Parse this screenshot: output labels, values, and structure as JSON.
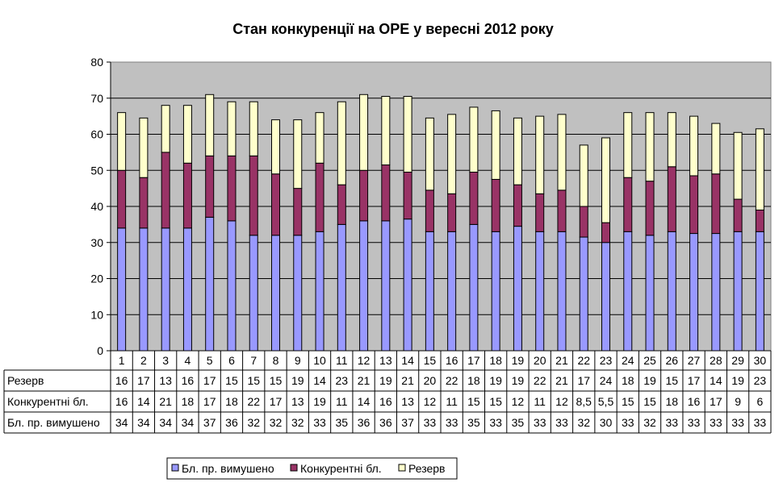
{
  "chart_data": {
    "type": "bar",
    "stacked": true,
    "title": "Стан конкуренції на ОРЕ  у вересні 2012 року",
    "categories": [
      "1",
      "2",
      "3",
      "4",
      "5",
      "6",
      "7",
      "8",
      "9",
      "10",
      "11",
      "12",
      "13",
      "14",
      "15",
      "16",
      "17",
      "18",
      "19",
      "20",
      "21",
      "22",
      "23",
      "24",
      "25",
      "26",
      "27",
      "28",
      "29",
      "30"
    ],
    "ylim": [
      0,
      80
    ],
    "yticks": [
      "0",
      "10",
      "20",
      "30",
      "40",
      "50",
      "60",
      "70",
      "80"
    ],
    "ytick_values": [
      0,
      10,
      20,
      30,
      40,
      50,
      60,
      70,
      80
    ],
    "plot_background": "#c0c0c0",
    "series": [
      {
        "name": "Бл. пр. вимушено",
        "color": "#9999ff",
        "values": [
          34,
          34,
          34,
          34,
          37,
          36,
          32,
          32,
          32,
          33,
          35,
          36,
          36,
          36.5,
          33,
          33,
          35,
          33,
          34.5,
          33,
          33,
          31.5,
          30,
          33,
          32,
          33,
          32.5,
          32.5,
          33,
          33
        ],
        "labels": [
          "34",
          "34",
          "34",
          "34",
          "37",
          "36",
          "32",
          "32",
          "32",
          "33",
          "35",
          "36",
          "36",
          "37",
          "33",
          "33",
          "35",
          "33",
          "35",
          "33",
          "33",
          "32",
          "30",
          "33",
          "32",
          "33",
          "33",
          "33",
          "33",
          "33"
        ]
      },
      {
        "name": "Конкурентні бл.",
        "color": "#993366",
        "values": [
          16,
          14,
          21,
          18,
          17,
          18,
          22,
          17,
          13,
          19,
          11,
          14,
          15.5,
          13,
          11.5,
          10.5,
          14.5,
          14.5,
          11.5,
          10.5,
          11.5,
          8.5,
          5.5,
          15,
          15,
          18,
          16,
          16.5,
          9,
          6
        ],
        "labels": [
          "16",
          "14",
          "21",
          "18",
          "17",
          "18",
          "22",
          "17",
          "13",
          "19",
          "11",
          "14",
          "16",
          "13",
          "12",
          "11",
          "15",
          "15",
          "12",
          "11",
          "12",
          "8,5",
          "5,5",
          "15",
          "15",
          "18",
          "16",
          "17",
          "9",
          "6"
        ]
      },
      {
        "name": "Резерв",
        "color": "#ffffcc",
        "values": [
          16,
          16.5,
          13,
          16,
          17,
          15,
          15,
          15,
          19,
          14,
          23,
          21,
          19,
          21,
          20,
          22,
          18,
          19,
          18.5,
          21.5,
          21,
          17,
          23.5,
          18,
          19,
          15,
          16.5,
          14,
          18.5,
          22.5
        ],
        "labels": [
          "16",
          "17",
          "13",
          "16",
          "17",
          "15",
          "15",
          "15",
          "19",
          "14",
          "23",
          "21",
          "19",
          "21",
          "20",
          "22",
          "18",
          "19",
          "19",
          "22",
          "21",
          "17",
          "24",
          "18",
          "19",
          "15",
          "17",
          "14",
          "19",
          "23"
        ]
      }
    ],
    "table_rows": [
      "Резерв",
      "Конкурентні бл.",
      "Бл. пр. вимушено"
    ],
    "legend": [
      "Бл. пр. вимушено",
      "Конкурентні бл.",
      "Резерв"
    ],
    "legend_position": "bottom"
  }
}
